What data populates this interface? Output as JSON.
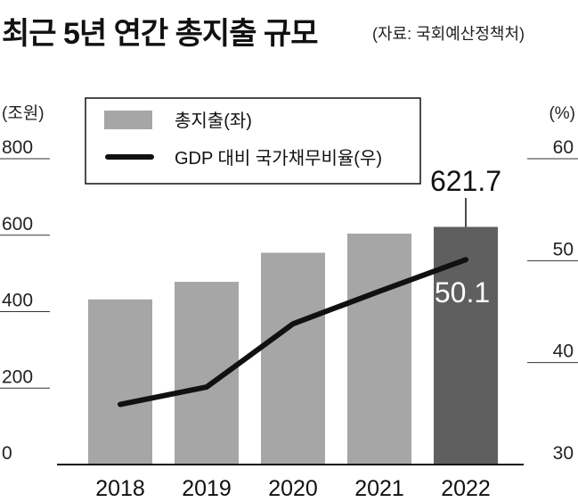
{
  "header": {
    "title": "최근 5년 연간 총지출 규모",
    "source": "(자료: 국회예산정책처)"
  },
  "chart_data": {
    "type": "bar",
    "categories": [
      "2018",
      "2019",
      "2020",
      "2021",
      "2022"
    ],
    "series": [
      {
        "name": "총지출(좌)",
        "type": "bar",
        "axis": "left",
        "values": [
          432,
          478,
          554,
          604,
          621.7
        ],
        "color": "#a6a6a6",
        "highlight_color": "#5f5f5f"
      },
      {
        "name": "GDP 대비 국가채무비율(우)",
        "type": "line",
        "axis": "right",
        "values": [
          35.9,
          37.6,
          43.8,
          47.0,
          50.1
        ],
        "color": "#111111"
      }
    ],
    "left_axis": {
      "unit": "(조원)",
      "ticks": [
        "0",
        "200",
        "400",
        "600",
        "800"
      ],
      "ylim": [
        0,
        800
      ]
    },
    "right_axis": {
      "unit": "(%)",
      "ticks": [
        "30",
        "40",
        "50",
        "60"
      ],
      "ylim": [
        30,
        60
      ]
    },
    "annotations": {
      "bar_last": "621.7",
      "line_last": "50.1"
    },
    "grid": true,
    "legend": "top-center"
  }
}
